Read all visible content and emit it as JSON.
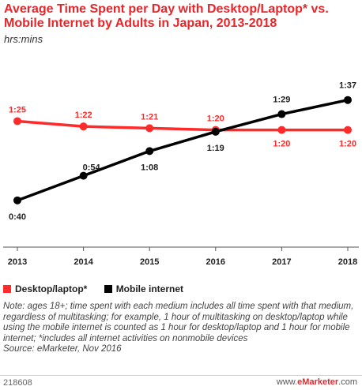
{
  "chart_data": {
    "type": "line",
    "title": "Average Time Spent per Day with Desktop/Laptop* vs. Mobile Internet by Adults in Japan, 2013-2018",
    "subtitle": "hrs:mins",
    "categories": [
      "2013",
      "2014",
      "2015",
      "2016",
      "2017",
      "2018"
    ],
    "series": [
      {
        "name": "Desktop/laptop*",
        "color": "#ff2a2a",
        "values": [
          85,
          82,
          81,
          80,
          80,
          80
        ],
        "labels": [
          "1:25",
          "1:22",
          "1:21",
          "1:20",
          "1:20",
          "1:20"
        ]
      },
      {
        "name": "Mobile internet",
        "color": "#000000",
        "values": [
          40,
          54,
          68,
          79,
          89,
          97
        ],
        "labels": [
          "0:40",
          "0:54",
          "1:08",
          "1:19",
          "1:29",
          "1:37"
        ]
      }
    ],
    "ylim": [
      35,
      100
    ],
    "grid": false,
    "legend_position": "bottom-left"
  },
  "note": "Note: ages 18+; time spent with each medium includes all time spent with that medium, regardless of multitasking; for example, 1 hour of multitasking on desktop/laptop while using the mobile internet is counted as 1 hour for desktop/laptop and 1 hour for mobile internet; *includes all internet activities on nonmobile devices",
  "source": "Source: eMarketer, Nov 2016",
  "footer": {
    "id": "218608",
    "url_prefix": "www.",
    "brand": "eMarketer",
    "url_suffix": ".com"
  }
}
